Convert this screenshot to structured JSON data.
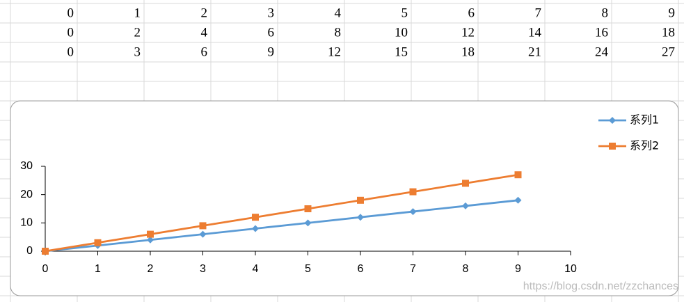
{
  "sheet": {
    "rows": [
      [
        0,
        1,
        2,
        3,
        4,
        5,
        6,
        7,
        8,
        9
      ],
      [
        0,
        2,
        4,
        6,
        8,
        10,
        12,
        14,
        16,
        18
      ],
      [
        0,
        3,
        6,
        9,
        12,
        15,
        18,
        21,
        24,
        27
      ]
    ]
  },
  "chart_data": {
    "type": "line",
    "x": [
      0,
      1,
      2,
      3,
      4,
      5,
      6,
      7,
      8,
      9
    ],
    "series": [
      {
        "name": "系列1",
        "color": "#5b9bd5",
        "marker": "diamond",
        "values": [
          0,
          2,
          4,
          6,
          8,
          10,
          12,
          14,
          16,
          18
        ]
      },
      {
        "name": "系列2",
        "color": "#ed7d31",
        "marker": "square",
        "values": [
          0,
          3,
          6,
          9,
          12,
          15,
          18,
          21,
          24,
          27
        ]
      }
    ],
    "xlim": [
      0,
      10
    ],
    "xticks": [
      0,
      1,
      2,
      3,
      4,
      5,
      6,
      7,
      8,
      9,
      10
    ],
    "ylim": [
      0,
      30
    ],
    "yticks": [
      0,
      10,
      20,
      30
    ],
    "grid": false,
    "legend": "top-right"
  },
  "watermark": "https://blog.csdn.net/zzchances"
}
